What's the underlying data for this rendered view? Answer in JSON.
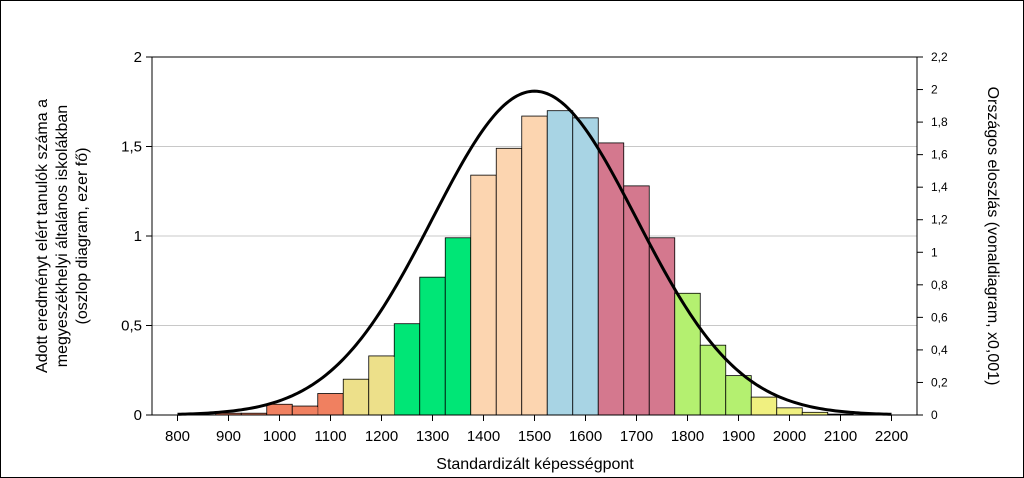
{
  "chart_data": {
    "type": "bar",
    "xlabel": "Standardizált képességpont",
    "ylabel_left": [
      "Adott eredményt elért tanulók száma a",
      "megyeszékhelyi általános iskolákban",
      "(oszlop diagram, ezer fő)"
    ],
    "ylabel_right": "Országos eloszlás (vonaldiagram, x0,001)",
    "xlim": [
      750,
      2250
    ],
    "ylim_left": [
      0,
      2
    ],
    "ylim_right": [
      0,
      2.2
    ],
    "x_ticks": [
      "800",
      "900",
      "1000",
      "1100",
      "1200",
      "1300",
      "1400",
      "1500",
      "1600",
      "1700",
      "1800",
      "1900",
      "2000",
      "2100",
      "2200"
    ],
    "y_ticks_left": [
      "0",
      "0,5",
      "1",
      "1,5",
      "2"
    ],
    "y_ticks_right": [
      "0",
      "0,2",
      "0,4",
      "0,6",
      "0,8",
      "1",
      "1,2",
      "1,4",
      "1,6",
      "1,8",
      "2",
      "2,2"
    ],
    "grid": "horizontal",
    "bar_width": 50,
    "bars": [
      {
        "x": 900,
        "value": 0.01,
        "color": "#f08060"
      },
      {
        "x": 950,
        "value": 0.01,
        "color": "#f08060"
      },
      {
        "x": 1000,
        "value": 0.06,
        "color": "#f08060"
      },
      {
        "x": 1050,
        "value": 0.05,
        "color": "#f08060"
      },
      {
        "x": 1100,
        "value": 0.12,
        "color": "#f08060"
      },
      {
        "x": 1150,
        "value": 0.2,
        "color": "#ede08a"
      },
      {
        "x": 1200,
        "value": 0.33,
        "color": "#ede08a"
      },
      {
        "x": 1250,
        "value": 0.51,
        "color": "#00e676"
      },
      {
        "x": 1300,
        "value": 0.77,
        "color": "#00e676"
      },
      {
        "x": 1350,
        "value": 0.99,
        "color": "#00e676"
      },
      {
        "x": 1400,
        "value": 1.34,
        "color": "#fcd5b0"
      },
      {
        "x": 1450,
        "value": 1.49,
        "color": "#fcd5b0"
      },
      {
        "x": 1500,
        "value": 1.67,
        "color": "#fcd5b0"
      },
      {
        "x": 1550,
        "value": 1.7,
        "color": "#a8d4e4"
      },
      {
        "x": 1600,
        "value": 1.66,
        "color": "#a8d4e4"
      },
      {
        "x": 1650,
        "value": 1.52,
        "color": "#d4788e"
      },
      {
        "x": 1700,
        "value": 1.28,
        "color": "#d4788e"
      },
      {
        "x": 1750,
        "value": 0.99,
        "color": "#d4788e"
      },
      {
        "x": 1800,
        "value": 0.68,
        "color": "#b4f070"
      },
      {
        "x": 1850,
        "value": 0.39,
        "color": "#b4f070"
      },
      {
        "x": 1900,
        "value": 0.22,
        "color": "#b4f070"
      },
      {
        "x": 1950,
        "value": 0.1,
        "color": "#f0f080"
      },
      {
        "x": 2000,
        "value": 0.04,
        "color": "#f0f080"
      },
      {
        "x": 2050,
        "value": 0.015,
        "color": "#f0f080"
      },
      {
        "x": 2100,
        "value": 0.005,
        "color": "#f0f080"
      }
    ],
    "edge_accents": [
      {
        "x_from": 1060,
        "x_to": 1075,
        "color": "#f08060"
      },
      {
        "x_from": 1210,
        "x_to": 1225,
        "color": "#ede08a"
      },
      {
        "x_from": 1635,
        "x_to": 1650,
        "color": "#d4788e"
      },
      {
        "x_from": 1795,
        "x_to": 1810,
        "color": "#b4f070"
      }
    ],
    "line": {
      "axis": "right",
      "type": "normal",
      "mean": 1500,
      "sd": 200,
      "peak": 1.99,
      "x_range": [
        800,
        2200
      ],
      "color": "#000000"
    }
  }
}
